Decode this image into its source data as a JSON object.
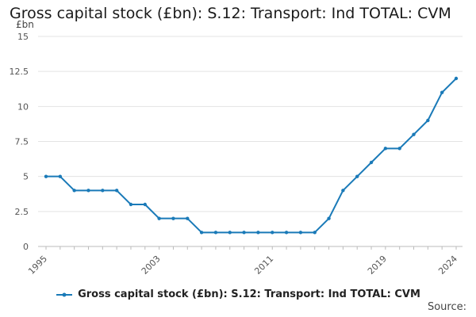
{
  "chart_data": {
    "type": "line",
    "title": "Gross capital stock (£bn): S.12: Transport: Ind TOTAL: CVM",
    "ylabel": "£bn",
    "xlabel": "",
    "ylim": [
      0,
      15
    ],
    "xlim": [
      1995,
      2024
    ],
    "yticks": [
      "0",
      "2.5",
      "5",
      "7.5",
      "10",
      "12.5",
      "15"
    ],
    "xticks": [
      "1995",
      "2003",
      "2011",
      "2019",
      "2024"
    ],
    "grid": true,
    "legend_position": "bottom",
    "series": [
      {
        "name": "Gross capital stock (£bn): S.12: Transport: Ind TOTAL: CVM",
        "color": "#1f77b4",
        "x": [
          1995,
          1996,
          1997,
          1998,
          1999,
          2000,
          2001,
          2002,
          2003,
          2004,
          2005,
          2006,
          2007,
          2008,
          2009,
          2010,
          2011,
          2012,
          2013,
          2014,
          2015,
          2016,
          2017,
          2018,
          2019,
          2020,
          2021,
          2022,
          2023,
          2024
        ],
        "y": [
          5,
          5,
          4,
          4,
          4,
          4,
          3,
          3,
          2,
          2,
          2,
          1,
          1,
          1,
          1,
          1,
          1,
          1,
          1,
          1,
          2,
          4,
          5,
          6,
          7,
          7,
          8,
          9,
          11,
          12
        ]
      }
    ]
  },
  "legend": {
    "label": "Gross capital stock (£bn): S.12: Transport: Ind TOTAL: CVM"
  },
  "source": {
    "label": "Source:"
  }
}
